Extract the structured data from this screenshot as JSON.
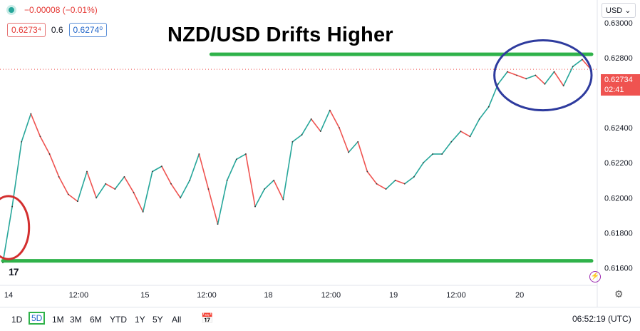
{
  "legend": {
    "change": "−0.00008 (−0.01%)",
    "bid": "0.6273⁴",
    "spread": "0.6",
    "ask": "0.6274⁰"
  },
  "currency_label": "USD",
  "current_price": {
    "value": "0.62734",
    "countdown": "02:41"
  },
  "clock": "06:52:19 (UTC)",
  "ranges": [
    "1D",
    "5D",
    "1M",
    "3M",
    "6M",
    "YTD",
    "1Y",
    "5Y",
    "All"
  ],
  "active_range": "5D",
  "icons": {
    "calendar": "calendar-range-icon",
    "settings": "gear-icon",
    "logo": "tradingview-logo-icon",
    "alert": "lightning-icon"
  },
  "colors": {
    "up": "#26a69a",
    "down": "#ef5350",
    "support_resistance": "#2fb24a",
    "circle_blue": "#2e3b9e",
    "circle_red": "#d32f2f",
    "price_tag": "#ef5350"
  },
  "chart_data": {
    "type": "line",
    "title": "NZD/USD Drifts Higher",
    "xlabel": "",
    "ylabel": "",
    "x_ticks": [
      "14",
      "12:00",
      "15",
      "12:00",
      "18",
      "12:00",
      "19",
      "12:00",
      "20"
    ],
    "y_ticks": [
      0.616,
      0.618,
      0.62,
      0.622,
      0.624,
      0.626,
      0.628,
      0.63
    ],
    "ylim": [
      0.615,
      0.6313
    ],
    "grid": false,
    "series": [
      {
        "name": "",
        "points": [
          [
            0,
            0.6163
          ],
          [
            1,
            0.6195
          ],
          [
            2,
            0.6232
          ],
          [
            3,
            0.6248
          ],
          [
            4,
            0.6235
          ],
          [
            5,
            0.6225
          ],
          [
            6,
            0.6212
          ],
          [
            7,
            0.6202
          ],
          [
            8,
            0.6198
          ],
          [
            9,
            0.6215
          ],
          [
            10,
            0.62
          ],
          [
            11,
            0.6208
          ],
          [
            12,
            0.6205
          ],
          [
            13,
            0.6212
          ],
          [
            14,
            0.6203
          ],
          [
            15,
            0.6192
          ],
          [
            16,
            0.6215
          ],
          [
            17,
            0.6218
          ],
          [
            18,
            0.6208
          ],
          [
            19,
            0.62
          ],
          [
            20,
            0.621
          ],
          [
            21,
            0.6225
          ],
          [
            22,
            0.6205
          ],
          [
            23,
            0.6185
          ],
          [
            24,
            0.621
          ],
          [
            25,
            0.6222
          ],
          [
            26,
            0.6225
          ],
          [
            27,
            0.6195
          ],
          [
            28,
            0.6205
          ],
          [
            29,
            0.621
          ],
          [
            30,
            0.6199
          ],
          [
            31,
            0.6232
          ],
          [
            32,
            0.6236
          ],
          [
            33,
            0.6245
          ],
          [
            34,
            0.6238
          ],
          [
            35,
            0.625
          ],
          [
            36,
            0.624
          ],
          [
            37,
            0.6226
          ],
          [
            38,
            0.6232
          ],
          [
            39,
            0.6215
          ],
          [
            40,
            0.6208
          ],
          [
            41,
            0.6205
          ],
          [
            42,
            0.621
          ],
          [
            43,
            0.6208
          ],
          [
            44,
            0.6212
          ],
          [
            45,
            0.622
          ],
          [
            46,
            0.6225
          ],
          [
            47,
            0.6225
          ],
          [
            48,
            0.6232
          ],
          [
            49,
            0.6238
          ],
          [
            50,
            0.6235
          ],
          [
            51,
            0.6245
          ],
          [
            52,
            0.6252
          ],
          [
            53,
            0.6265
          ],
          [
            54,
            0.6272
          ],
          [
            55,
            0.627
          ],
          [
            56,
            0.6268
          ],
          [
            57,
            0.627
          ],
          [
            58,
            0.6265
          ],
          [
            59,
            0.6272
          ],
          [
            60,
            0.6264
          ],
          [
            61,
            0.6275
          ],
          [
            62,
            0.6279
          ],
          [
            63,
            0.6273
          ]
        ]
      }
    ],
    "annotations": [
      {
        "type": "hline",
        "y": 0.6282,
        "x_from": 22.3,
        "x_to": 63
      },
      {
        "type": "hline",
        "y": 0.6164,
        "x_from": 0,
        "x_to": 63
      },
      {
        "type": "dotted-hline",
        "y": 0.62734
      },
      {
        "type": "ellipse",
        "color": "blue",
        "cx": 57.8,
        "cy": 0.627,
        "rx": 5.2,
        "ry": 0.002
      },
      {
        "type": "ellipse",
        "color": "red",
        "cx": 0.6,
        "cy": 0.6183,
        "rx": 2.2,
        "ry": 0.0018
      }
    ]
  }
}
